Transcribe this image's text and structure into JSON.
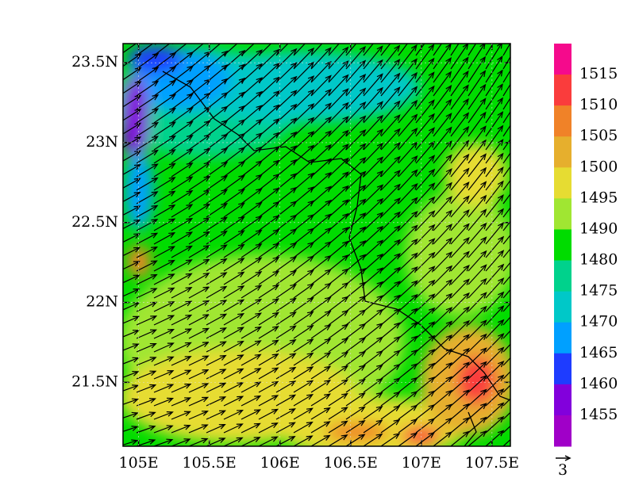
{
  "chart_data": {
    "type": "map",
    "xlim": [
      104.89,
      107.63
    ],
    "ylim": [
      21.1,
      23.62
    ],
    "xticks": [
      {
        "value": 105,
        "label": "105E"
      },
      {
        "value": 105.5,
        "label": "105.5E"
      },
      {
        "value": 106,
        "label": "106E"
      },
      {
        "value": 106.5,
        "label": "106.5E"
      },
      {
        "value": 107,
        "label": "107E"
      },
      {
        "value": 107.5,
        "label": "107.5E"
      }
    ],
    "yticks": [
      {
        "value": 21.5,
        "label": "21.5N"
      },
      {
        "value": 22,
        "label": "22N"
      },
      {
        "value": 22.5,
        "label": "22.5N"
      },
      {
        "value": 23,
        "label": "23N"
      },
      {
        "value": 23.5,
        "label": "23.5N"
      }
    ],
    "colorbar": {
      "levels": [
        1515,
        1510,
        1505,
        1500,
        1495,
        1490,
        1480,
        1475,
        1470,
        1465,
        1460,
        1455
      ],
      "colors": [
        "#f50a8c",
        "#fa3c3c",
        "#f08228",
        "#e6af2d",
        "#e6dc32",
        "#a0e632",
        "#00dc00",
        "#00d28c",
        "#00c8c8",
        "#00a0ff",
        "#1e3cff",
        "#8200dc",
        "#a000c8"
      ]
    },
    "reference_vector": "3"
  }
}
